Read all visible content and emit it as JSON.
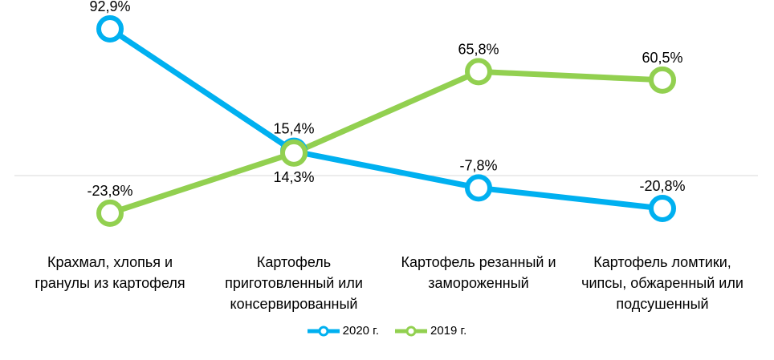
{
  "chart_data": {
    "type": "line",
    "categories": [
      "Крахмал, хлопья и\nгранулы из картофеля",
      "Картофель\nприготовленный или\nконсервированный",
      "Картофель резанный и\nзамороженный",
      "Картофель ломтики,\nчипсы, обжаренный или\nподсушенный"
    ],
    "series": [
      {
        "name": "2020 г.",
        "values": [
          92.9,
          15.4,
          -7.8,
          -20.8
        ],
        "labels": [
          "92,9%",
          "15,4%",
          "-7,8%",
          "-20,8%"
        ],
        "color": "#00B0F0"
      },
      {
        "name": "2019 г.",
        "values": [
          -23.8,
          14.3,
          65.8,
          60.5
        ],
        "labels": [
          "-23,8%",
          "14,3%",
          "65,8%",
          "60,5%"
        ],
        "color": "#92D050"
      }
    ],
    "ylim": [
      -35,
      100
    ],
    "baseline": 0,
    "grid": false,
    "legend_position": "bottom"
  }
}
